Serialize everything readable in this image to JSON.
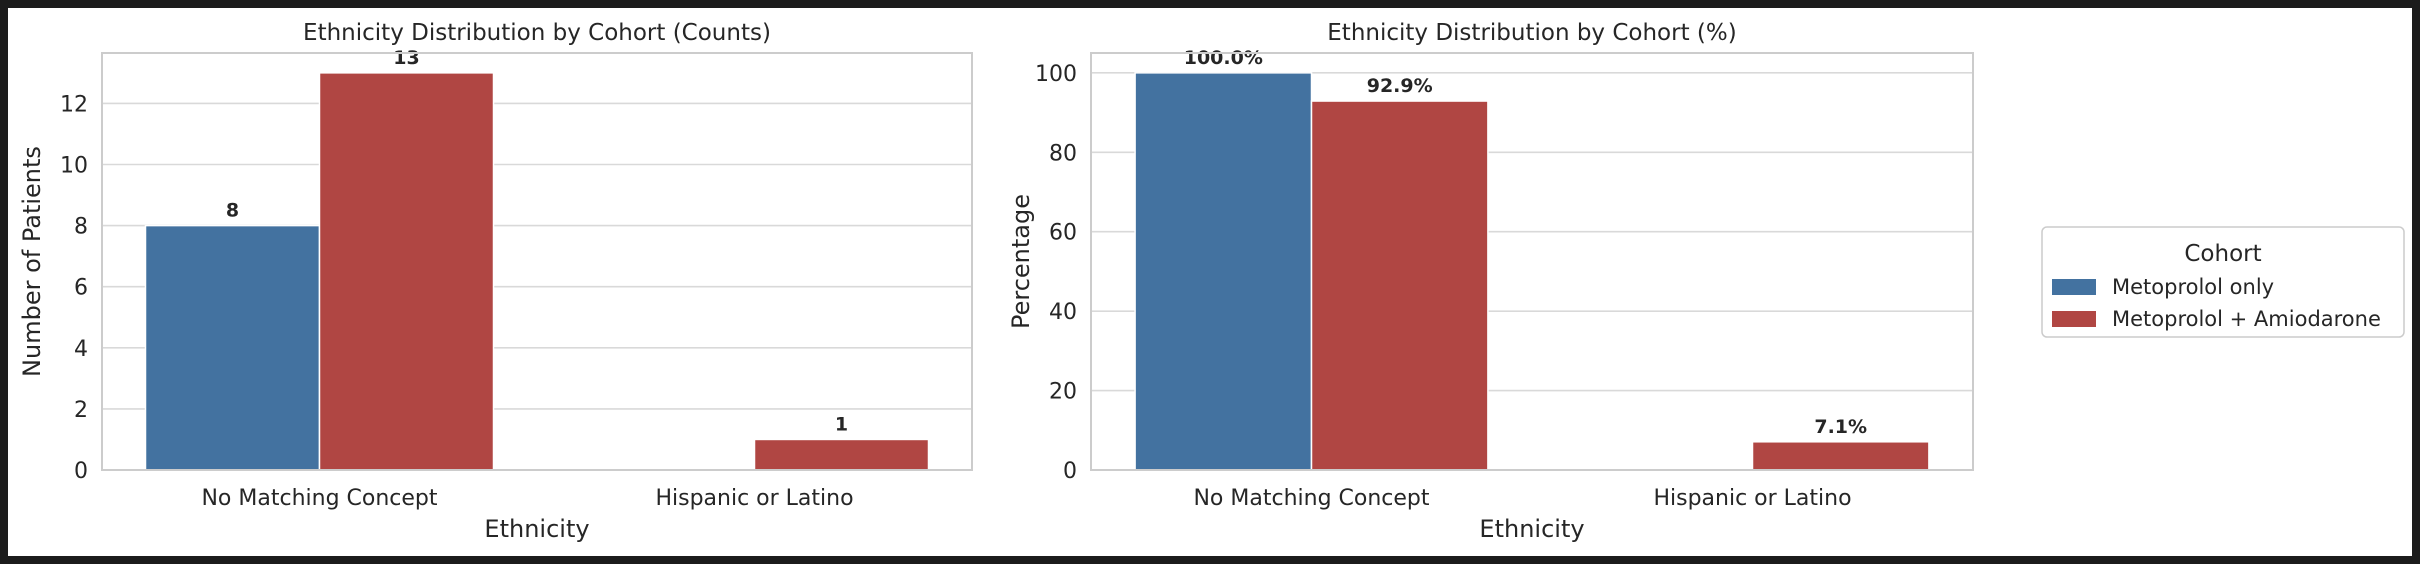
{
  "colors": {
    "series": [
      "#4372a0",
      "#b04643"
    ],
    "axis_frame": "#cccccc",
    "grid": "#d9d9d9",
    "text": "#262626"
  },
  "chart_data": [
    {
      "type": "bar",
      "title": "Ethnicity Distribution by Cohort (Counts)",
      "xlabel": "Ethnicity",
      "ylabel": "Number of Patients",
      "categories": [
        "No Matching Concept",
        "Hispanic or Latino"
      ],
      "series": [
        {
          "name": "Metoprolol only",
          "values": [
            8,
            0
          ],
          "labels": [
            "8",
            ""
          ]
        },
        {
          "name": "Metoprolol + Amiodarone",
          "values": [
            13,
            1
          ],
          "labels": [
            "13",
            "1"
          ]
        }
      ],
      "ylim": [
        0,
        13.65
      ],
      "yticks": [
        0,
        2,
        4,
        6,
        8,
        10,
        12
      ],
      "ytick_labels": [
        "0",
        "2",
        "4",
        "6",
        "8",
        "10",
        "12"
      ],
      "grid": true
    },
    {
      "type": "bar",
      "title": "Ethnicity Distribution by Cohort (%)",
      "xlabel": "Ethnicity",
      "ylabel": "Percentage",
      "categories": [
        "No Matching Concept",
        "Hispanic or Latino"
      ],
      "series": [
        {
          "name": "Metoprolol only",
          "values": [
            100.0,
            0
          ],
          "labels": [
            "100.0%",
            ""
          ]
        },
        {
          "name": "Metoprolol + Amiodarone",
          "values": [
            92.9,
            7.1
          ],
          "labels": [
            "92.9%",
            "7.1%"
          ]
        }
      ],
      "ylim": [
        0,
        105
      ],
      "yticks": [
        0,
        20,
        40,
        60,
        80,
        100
      ],
      "ytick_labels": [
        "0",
        "20",
        "40",
        "60",
        "80",
        "100"
      ],
      "grid": true
    }
  ],
  "legend": {
    "title": "Cohort",
    "placement": "right",
    "entries": [
      "Metoprolol only",
      "Metoprolol + Amiodarone"
    ]
  }
}
